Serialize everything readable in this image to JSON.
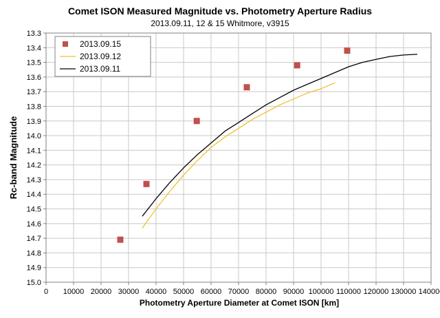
{
  "chart_data": {
    "type": "scatter",
    "title": "Comet ISON Measured Magnitude vs. Photometry Aperture Radius",
    "subtitle": "2013.09.11,  12 & 15 Whitmore, v3915",
    "xlabel": "Photometry Aperture Diameter at Comet ISON [km]",
    "ylabel": "Rc-band Magnitude",
    "xlim": [
      0,
      140000
    ],
    "ylim": [
      13.3,
      15.0
    ],
    "y_inverted": true,
    "grid": true,
    "legend_position": "top-left",
    "x_ticks": [
      0,
      10000,
      20000,
      30000,
      40000,
      50000,
      60000,
      70000,
      80000,
      90000,
      100000,
      110000,
      120000,
      130000,
      140000
    ],
    "y_ticks": [
      "13.3",
      "13.4",
      "13.5",
      "13.6",
      "13.7",
      "13.8",
      "13.9",
      "14.0",
      "14.1",
      "14.2",
      "14.3",
      "14.4",
      "14.5",
      "14.6",
      "14.7",
      "14.8",
      "14.9",
      "15.0"
    ],
    "series": [
      {
        "name": "2013.09.15",
        "kind": "markers",
        "color": "#c0504d",
        "x": [
          27000,
          36500,
          54800,
          73000,
          91300,
          109500
        ],
        "y": [
          14.71,
          14.33,
          13.9,
          13.67,
          13.52,
          13.42
        ]
      },
      {
        "name": "2013.09.12",
        "kind": "line",
        "color": "#f2c12e",
        "x": [
          35000,
          40000,
          45000,
          50000,
          55000,
          60000,
          65000,
          70000,
          75000,
          80000,
          85000,
          90000,
          95000,
          100000,
          105000
        ],
        "y": [
          14.63,
          14.5,
          14.38,
          14.27,
          14.17,
          14.08,
          14.01,
          13.95,
          13.89,
          13.84,
          13.79,
          13.75,
          13.71,
          13.68,
          13.64
        ]
      },
      {
        "name": "2013.09.11",
        "kind": "line",
        "color": "#000000",
        "x": [
          35000,
          40000,
          45000,
          50000,
          55000,
          60000,
          65000,
          70000,
          75000,
          80000,
          85000,
          90000,
          95000,
          100000,
          105000,
          110000,
          115000,
          120000,
          125000,
          130000,
          135000
        ],
        "y": [
          14.55,
          14.43,
          14.32,
          14.22,
          14.13,
          14.05,
          13.97,
          13.91,
          13.85,
          13.79,
          13.74,
          13.69,
          13.65,
          13.61,
          13.57,
          13.53,
          13.5,
          13.48,
          13.46,
          13.45,
          13.445
        ]
      }
    ]
  }
}
